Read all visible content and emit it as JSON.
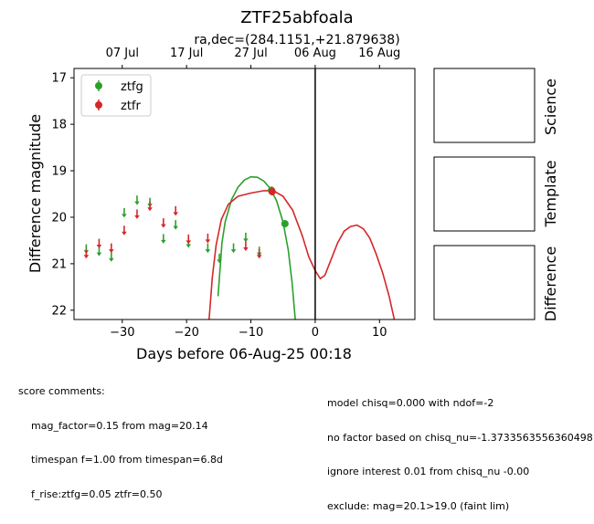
{
  "chart_data": {
    "type": "scatter",
    "title": "ZTF25abfoala",
    "subtitle": "ra,dec=(284.1151,+21.879638)",
    "xlabel": "Days before 06-Aug-25 00:18",
    "ylabel": "Difference magnitude",
    "xlim": [
      -37.5,
      15.5
    ],
    "ylim": [
      22.2,
      16.8
    ],
    "y_inverted": true,
    "x_ticks": [
      -30,
      -20,
      -10,
      0,
      10
    ],
    "x_tick_labels": [
      "−30",
      "−20",
      "−10",
      "0",
      "10"
    ],
    "y_ticks": [
      17,
      18,
      19,
      20,
      21,
      22
    ],
    "y_tick_labels": [
      "17",
      "18",
      "19",
      "20",
      "21",
      "22"
    ],
    "top_axis_ticks": [
      -30,
      -20,
      -10,
      0,
      10
    ],
    "top_axis_labels": [
      "07 Jul",
      "17 Jul",
      "27 Jul",
      "06 Aug",
      "16 Aug"
    ],
    "reference_line_x": 0,
    "legend_position": "upper-left",
    "series": [
      {
        "name": "ztfg",
        "color": "#2ca02c",
        "detections": [
          {
            "x": -6.8,
            "y": 19.42,
            "yerr": 0.08
          },
          {
            "x": -4.7,
            "y": 20.14,
            "yerr": 0.08
          }
        ],
        "upper_limits": [
          {
            "x": -35.6,
            "y": 20.7
          },
          {
            "x": -33.6,
            "y": 20.75
          },
          {
            "x": -31.7,
            "y": 20.87
          },
          {
            "x": -29.7,
            "y": 19.92
          },
          {
            "x": -27.7,
            "y": 19.65
          },
          {
            "x": -25.7,
            "y": 19.7
          },
          {
            "x": -23.6,
            "y": 20.48
          },
          {
            "x": -21.7,
            "y": 20.18
          },
          {
            "x": -19.7,
            "y": 20.57
          },
          {
            "x": -16.7,
            "y": 20.68
          },
          {
            "x": -14.9,
            "y": 20.9
          },
          {
            "x": -12.7,
            "y": 20.68
          },
          {
            "x": -10.8,
            "y": 20.45
          },
          {
            "x": -8.7,
            "y": 20.75
          }
        ],
        "model_curve": [
          {
            "x": -15.1,
            "y": 21.7
          },
          {
            "x": -14.5,
            "y": 20.55
          },
          {
            "x": -14.0,
            "y": 20.1
          },
          {
            "x": -13.0,
            "y": 19.62
          },
          {
            "x": -12.0,
            "y": 19.35
          },
          {
            "x": -11.0,
            "y": 19.2
          },
          {
            "x": -10.0,
            "y": 19.13
          },
          {
            "x": -9.0,
            "y": 19.14
          },
          {
            "x": -8.0,
            "y": 19.22
          },
          {
            "x": -7.0,
            "y": 19.38
          },
          {
            "x": -6.0,
            "y": 19.65
          },
          {
            "x": -5.0,
            "y": 20.1
          },
          {
            "x": -4.2,
            "y": 20.7
          },
          {
            "x": -3.6,
            "y": 21.4
          },
          {
            "x": -3.1,
            "y": 22.2
          }
        ]
      },
      {
        "name": "ztfr",
        "color": "#d62728",
        "detections": [
          {
            "x": -6.7,
            "y": 19.45,
            "yerr": 0.08
          }
        ],
        "upper_limits": [
          {
            "x": -35.6,
            "y": 20.8
          },
          {
            "x": -33.6,
            "y": 20.58
          },
          {
            "x": -31.7,
            "y": 20.68
          },
          {
            "x": -29.7,
            "y": 20.3
          },
          {
            "x": -27.7,
            "y": 19.95
          },
          {
            "x": -25.7,
            "y": 19.78
          },
          {
            "x": -23.6,
            "y": 20.14
          },
          {
            "x": -21.7,
            "y": 19.88
          },
          {
            "x": -19.7,
            "y": 20.49
          },
          {
            "x": -16.7,
            "y": 20.47
          },
          {
            "x": -10.8,
            "y": 20.64
          },
          {
            "x": -8.7,
            "y": 20.8
          }
        ],
        "model_curve": [
          {
            "x": -16.5,
            "y": 22.2
          },
          {
            "x": -16.0,
            "y": 21.3
          },
          {
            "x": -15.4,
            "y": 20.6
          },
          {
            "x": -14.6,
            "y": 20.05
          },
          {
            "x": -13.5,
            "y": 19.72
          },
          {
            "x": -12.0,
            "y": 19.55
          },
          {
            "x": -10.0,
            "y": 19.48
          },
          {
            "x": -8.0,
            "y": 19.43
          },
          {
            "x": -6.5,
            "y": 19.43
          },
          {
            "x": -5.0,
            "y": 19.55
          },
          {
            "x": -3.5,
            "y": 19.85
          },
          {
            "x": -2.0,
            "y": 20.4
          },
          {
            "x": -1.0,
            "y": 20.85
          },
          {
            "x": 0.0,
            "y": 21.15
          },
          {
            "x": 0.8,
            "y": 21.32
          },
          {
            "x": 1.5,
            "y": 21.25
          },
          {
            "x": 2.5,
            "y": 20.9
          },
          {
            "x": 3.5,
            "y": 20.55
          },
          {
            "x": 4.5,
            "y": 20.3
          },
          {
            "x": 5.5,
            "y": 20.2
          },
          {
            "x": 6.5,
            "y": 20.17
          },
          {
            "x": 7.5,
            "y": 20.25
          },
          {
            "x": 8.5,
            "y": 20.45
          },
          {
            "x": 9.5,
            "y": 20.8
          },
          {
            "x": 10.5,
            "y": 21.2
          },
          {
            "x": 11.5,
            "y": 21.7
          },
          {
            "x": 12.3,
            "y": 22.2
          }
        ]
      }
    ]
  },
  "side_panels": {
    "science_label": "Science",
    "template_label": "Template",
    "difference_label": "Difference"
  },
  "score_comments": {
    "heading": "score comments:",
    "left": [
      "mag_factor=0.15 from mag=20.14",
      "timespan f=1.00 from timespan=6.8d",
      "f_rise:ztfg=0.05 ztfr=0.50"
    ],
    "right": [
      "model chisq=0.000 with ndof=-2",
      "no factor based on chisq_nu=-1.3733563556360498",
      "ignore interest 0.01 from chisq_nu -0.00",
      "exclude: mag=20.1>19.0 (faint lim)"
    ]
  }
}
